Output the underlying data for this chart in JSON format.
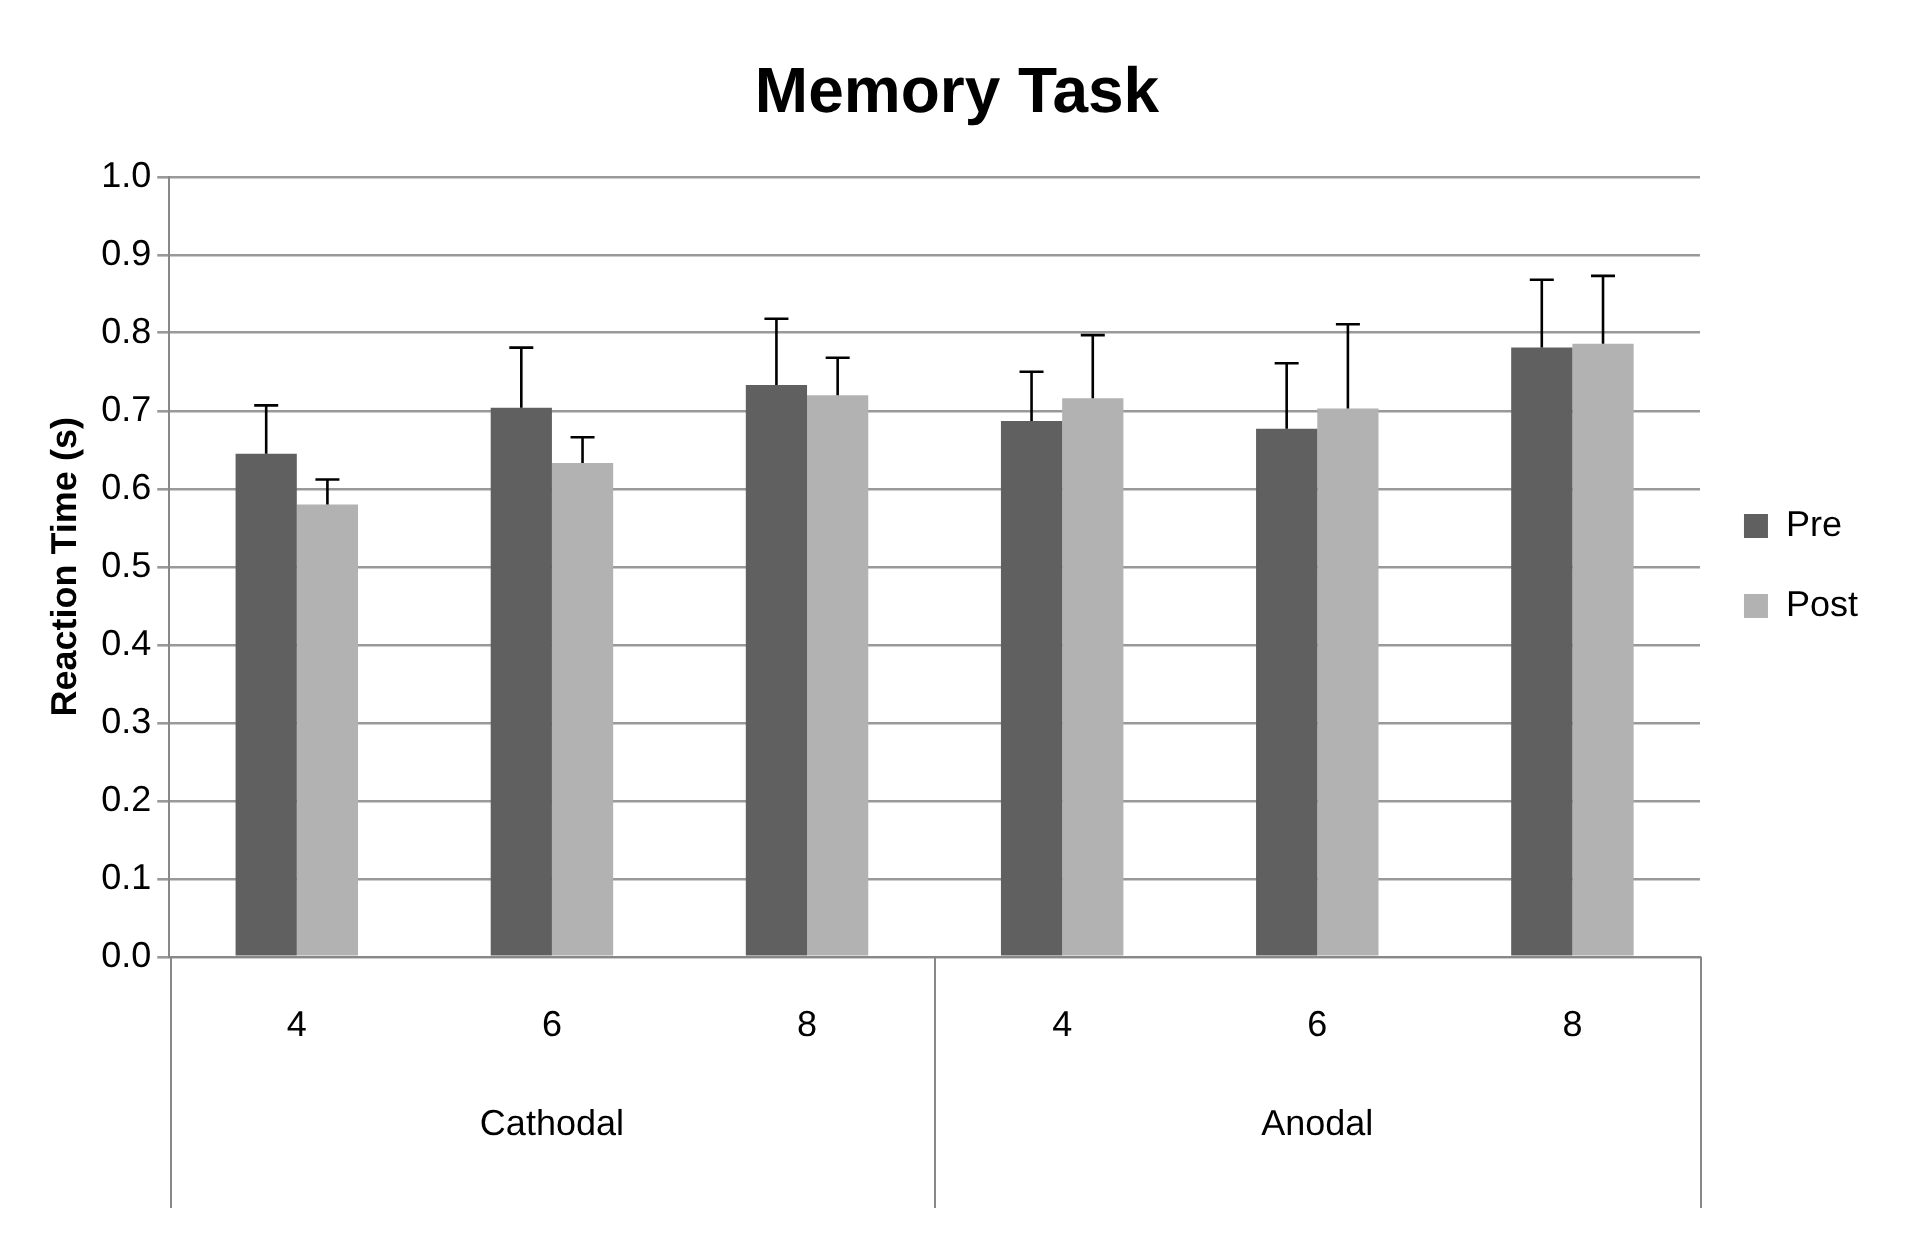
{
  "chart_data": {
    "type": "bar",
    "title": "Memory Task",
    "ylabel": "Reaction Time (s)",
    "categories": [
      "4",
      "6",
      "8",
      "4",
      "6",
      "8"
    ],
    "annotations": [
      "Cathodal",
      "Anodal"
    ],
    "series": [
      {
        "name": "Pre",
        "color": "#606060",
        "values": [
          0.645,
          0.704,
          0.733,
          0.687,
          0.677,
          0.781
        ],
        "errors": [
          0.062,
          0.077,
          0.085,
          0.063,
          0.084,
          0.087
        ]
      },
      {
        "name": "Post",
        "color": "#b2b2b2",
        "values": [
          0.58,
          0.633,
          0.72,
          0.716,
          0.703,
          0.786
        ],
        "errors": [
          0.032,
          0.033,
          0.048,
          0.081,
          0.108,
          0.087
        ]
      }
    ],
    "ylim": [
      0,
      1.0
    ],
    "yticks": [
      {
        "value": 0,
        "label": "0.0"
      },
      {
        "value": 0.1,
        "label": "0.1"
      },
      {
        "value": 0.2,
        "label": "0.2"
      },
      {
        "value": 0.3,
        "label": "0.3"
      },
      {
        "value": 0.4,
        "label": "0.4"
      },
      {
        "value": 0.5,
        "label": "0.5"
      },
      {
        "value": 0.6,
        "label": "0.6"
      },
      {
        "value": 0.7,
        "label": "0.7"
      },
      {
        "value": 0.8,
        "label": "0.8"
      },
      {
        "value": 0.9,
        "label": "0.9"
      },
      {
        "value": 1.0,
        "label": "1.0"
      }
    ],
    "grid": "y",
    "legend": "right"
  }
}
